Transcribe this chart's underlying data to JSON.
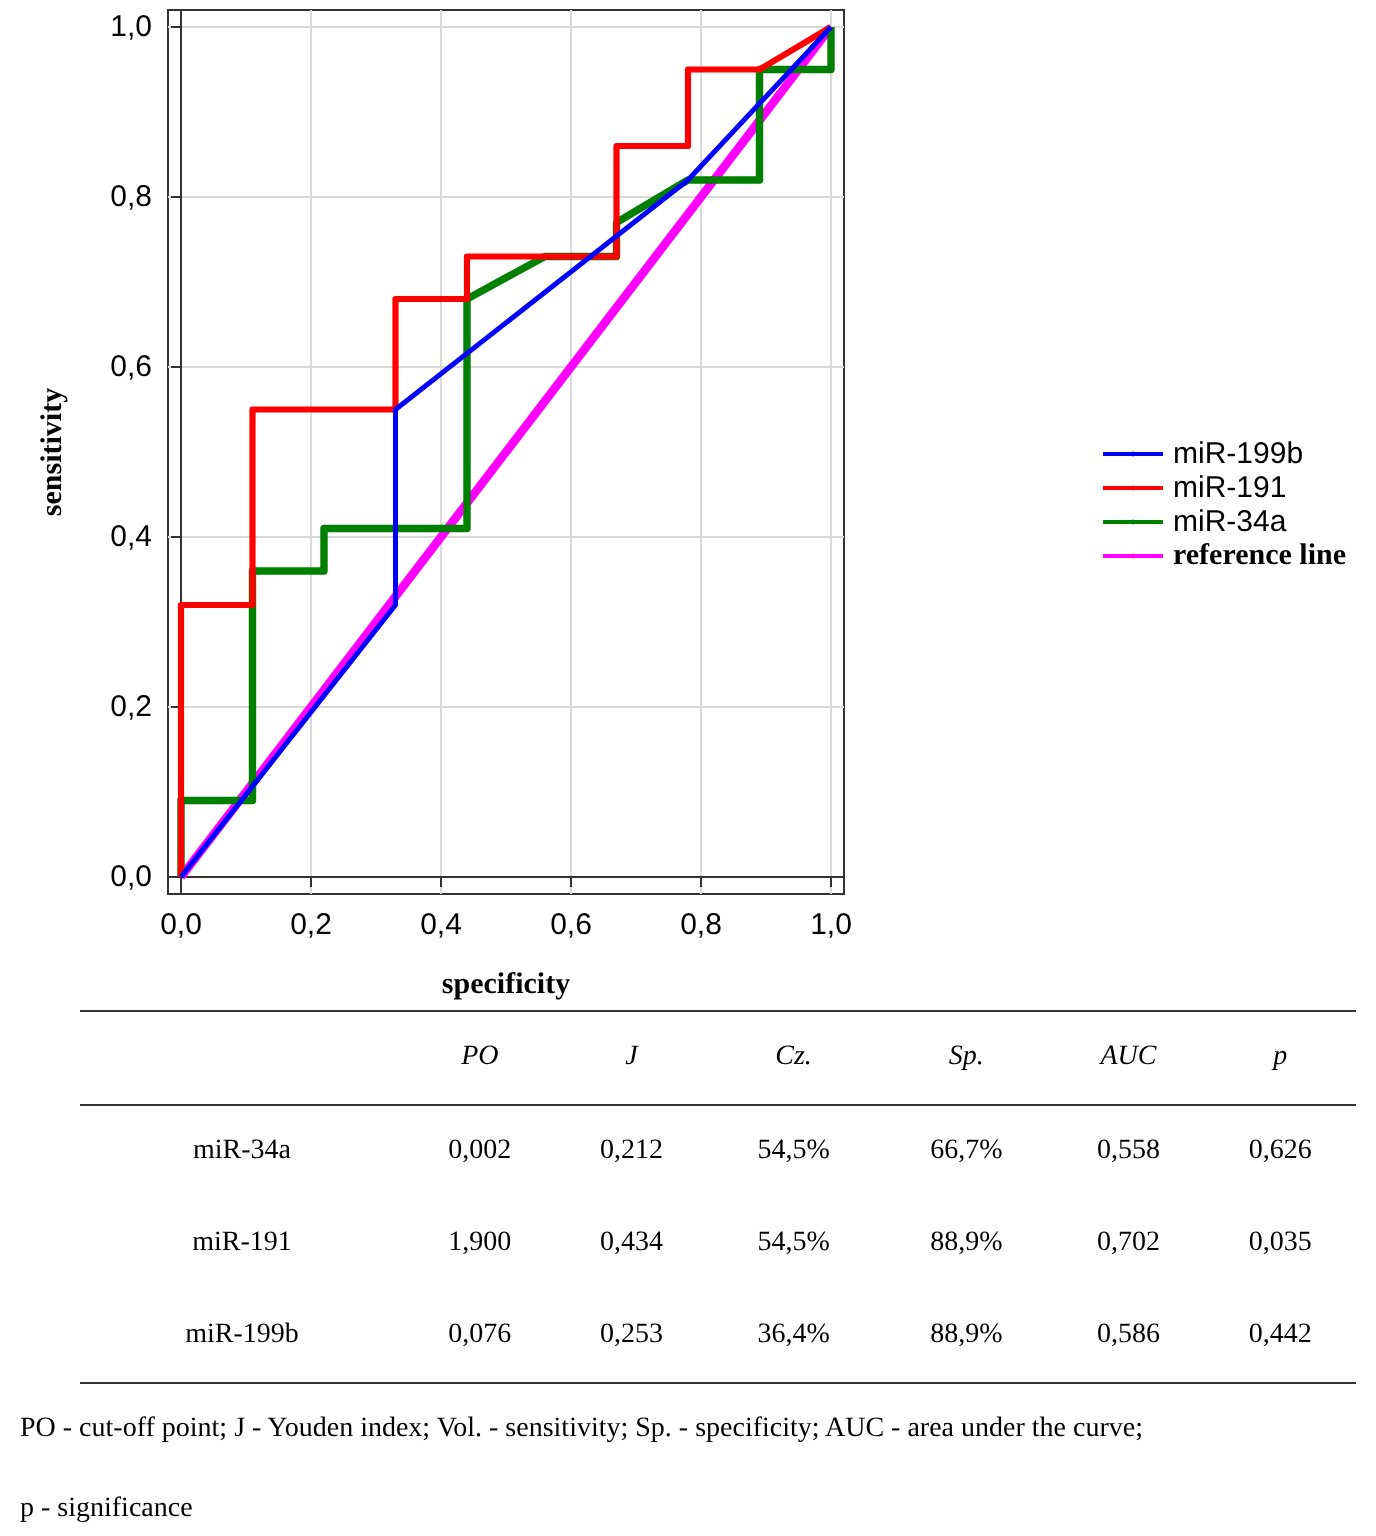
{
  "chart_data": [
    {
      "type": "line",
      "xlabel": "specificity",
      "ylabel": "sensitivity",
      "xlim": [
        -0.02,
        1.02
      ],
      "ylim": [
        -0.02,
        1.02
      ],
      "xticks": [
        {
          "value": 0,
          "label": "0,0"
        },
        {
          "value": 0.2,
          "label": "0,2"
        },
        {
          "value": 0.4,
          "label": "0,4"
        },
        {
          "value": 0.6,
          "label": "0,6"
        },
        {
          "value": 0.8,
          "label": "0,8"
        },
        {
          "value": 1,
          "label": "1,0"
        }
      ],
      "yticks": [
        {
          "value": 0,
          "label": "0,0"
        },
        {
          "value": 0.2,
          "label": "0,2"
        },
        {
          "value": 0.4,
          "label": "0,4"
        },
        {
          "value": 0.6,
          "label": "0,6"
        },
        {
          "value": 0.8,
          "label": "0,8"
        },
        {
          "value": 1,
          "label": "1,0"
        }
      ],
      "grid": true,
      "legend": "right",
      "marker": "none",
      "line_style": "solid",
      "series": [
        {
          "name": "miR-199b",
          "color": "#0000ff",
          "x": [
            0,
            0.33,
            0.33,
            0.78,
            1
          ],
          "values": [
            0,
            0.32,
            0.55,
            0.82,
            1
          ]
        },
        {
          "name": "miR-191",
          "color": "#ff0000",
          "x": [
            0,
            0,
            0.11,
            0.11,
            0.33,
            0.33,
            0.44,
            0.44,
            0.56,
            0.67,
            0.67,
            0.78,
            0.78,
            0.89,
            1
          ],
          "values": [
            0,
            0.32,
            0.32,
            0.55,
            0.55,
            0.68,
            0.68,
            0.73,
            0.73,
            0.73,
            0.86,
            0.86,
            0.95,
            0.95,
            1
          ]
        },
        {
          "name": "miR-34a",
          "color": "#008000",
          "x": [
            0,
            0,
            0.11,
            0.11,
            0.22,
            0.22,
            0.44,
            0.44,
            0.56,
            0.67,
            0.67,
            0.78,
            0.89,
            0.89,
            1,
            1
          ],
          "values": [
            0,
            0.09,
            0.09,
            0.36,
            0.36,
            0.41,
            0.41,
            0.68,
            0.73,
            0.73,
            0.77,
            0.82,
            0.82,
            0.95,
            0.95,
            1
          ]
        },
        {
          "name": "reference line",
          "color": "#ff00ff",
          "x": [
            0,
            1
          ],
          "values": [
            0,
            1
          ]
        }
      ]
    },
    {
      "type": "other",
      "categories": [
        "PO",
        "J",
        "Cz.",
        "Sp.",
        "AUC",
        "p"
      ],
      "y_categories": [
        "miR-34a",
        "miR-191",
        "miR-199b"
      ],
      "cell_labels": [
        [
          "0,002",
          "0,212",
          "54,5%",
          "66,7%",
          "0,558",
          "0,626"
        ],
        [
          "1,900",
          "0,434",
          "54,5%",
          "88,9%",
          "0,702",
          "0,035"
        ],
        [
          "0,076",
          "0,253",
          "36,4%",
          "88,9%",
          "0,586",
          "0,442"
        ]
      ],
      "annotations": [
        "PO - cut-off point; J - Youden index; Vol. - sensitivity; Sp. - specificity; AUC - area under the curve;",
        "p - significance"
      ]
    }
  ]
}
